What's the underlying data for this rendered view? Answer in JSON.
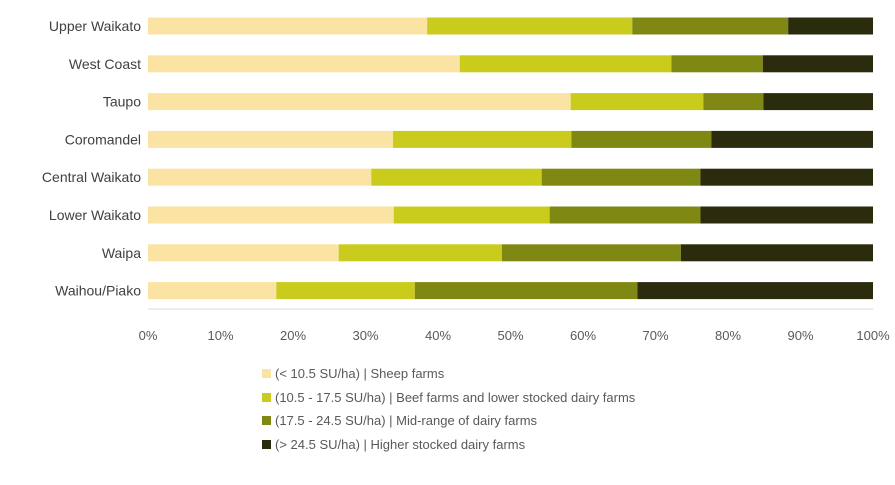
{
  "chart_data": {
    "type": "bar",
    "orientation": "horizontal",
    "stacked": "percent",
    "categories": [
      "Upper Waikato",
      "West Coast",
      "Taupo",
      "Coromandel",
      "Central Waikato",
      "Lower Waikato",
      "Waipa",
      "Waihou/Piako"
    ],
    "series": [
      {
        "name": "(< 10.5 SU/ha) | Sheep farms",
        "color": "#fbe3a3",
        "values": [
          38.5,
          43,
          58.3,
          33.8,
          30.8,
          33.9,
          26.3,
          17.7
        ]
      },
      {
        "name": "(10.5 - 17.5 SU/ha) | Beef farms and lower stocked dairy farms",
        "color": "#c9cc1c",
        "values": [
          28.3,
          29.2,
          18.3,
          24.6,
          23.5,
          21.5,
          22.5,
          19.1
        ]
      },
      {
        "name": "(17.5 - 24.5 SU/ha) | Mid-range of dairy farms",
        "color": "#808814",
        "values": [
          21.5,
          12.6,
          8.3,
          19.3,
          21.9,
          20.8,
          24.7,
          30.7
        ]
      },
      {
        "name": "(> 24.5 SU/ha) | Higher stocked dairy farms",
        "color": "#2b2b0d",
        "values": [
          11.7,
          15.2,
          15.1,
          22.3,
          23.8,
          23.8,
          26.5,
          32.5
        ]
      }
    ],
    "x_ticks": [
      "0%",
      "10%",
      "20%",
      "30%",
      "40%",
      "50%",
      "60%",
      "70%",
      "80%",
      "90%",
      "100%"
    ],
    "xlim": [
      0,
      100
    ],
    "grid": false,
    "legend_position": "bottom"
  }
}
